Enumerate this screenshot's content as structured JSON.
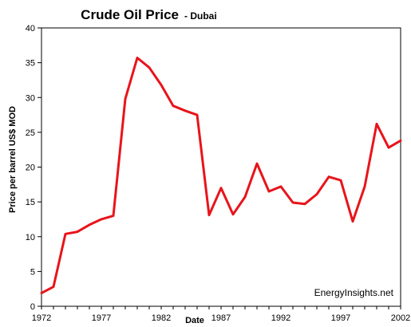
{
  "chart_data": {
    "type": "line",
    "title": "Crude Oil Price",
    "subtitle": "- Dubai",
    "xlabel": "Date",
    "ylabel": "Price per barrel US$ MOD",
    "annotation": "EnergyInsights.net",
    "xlim": [
      1972,
      2002
    ],
    "ylim": [
      0,
      40
    ],
    "y_ticks": [
      0,
      5,
      10,
      15,
      20,
      25,
      30,
      35,
      40
    ],
    "x_ticks": [
      1972,
      1977,
      1982,
      1987,
      1992,
      1997,
      2002
    ],
    "grid": false,
    "legend": "none",
    "line_color": "#e8141b",
    "series": [
      {
        "x": [
          1972,
          1973,
          1974,
          1975,
          1976,
          1977,
          1978,
          1979,
          1980,
          1981,
          1982,
          1983,
          1984,
          1985,
          1986,
          1987,
          1988,
          1989,
          1990,
          1991,
          1992,
          1993,
          1994,
          1995,
          1996,
          1997,
          1998,
          1999,
          2000,
          2001,
          2002
        ],
        "y": [
          1.9,
          2.8,
          10.4,
          10.7,
          11.7,
          12.5,
          13.0,
          29.8,
          35.7,
          34.3,
          31.8,
          28.8,
          28.1,
          27.5,
          13.1,
          17.0,
          13.2,
          15.7,
          20.5,
          16.5,
          17.2,
          14.9,
          14.7,
          16.1,
          18.6,
          18.1,
          12.2,
          17.2,
          26.2,
          22.8,
          23.8
        ]
      }
    ]
  }
}
